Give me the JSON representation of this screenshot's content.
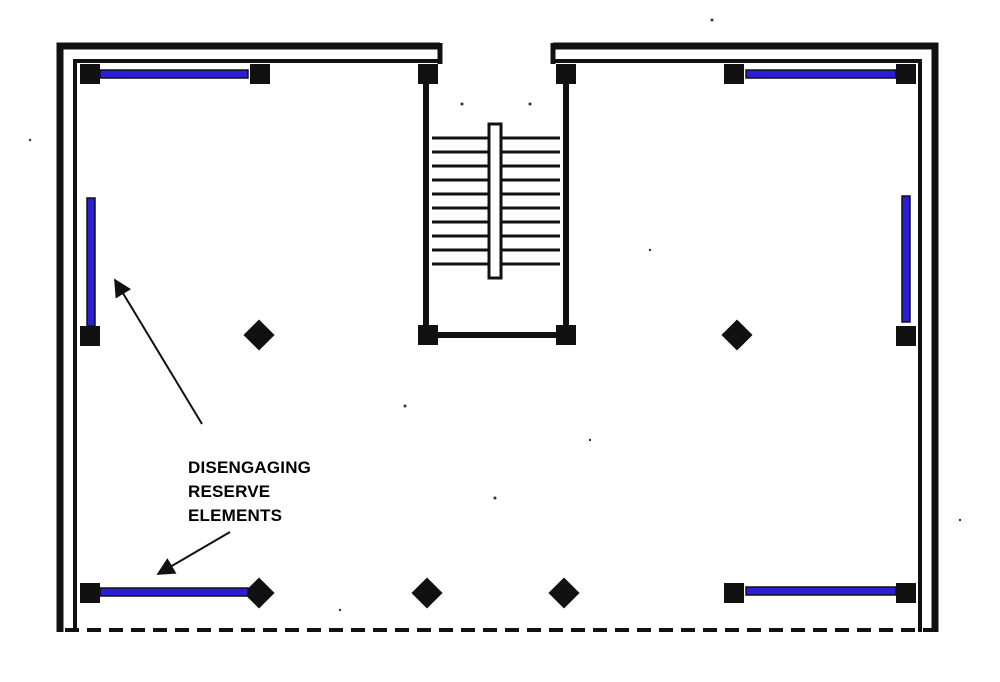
{
  "annotation": {
    "lines": [
      "DISENGAGING",
      "RESERVE",
      "ELEMENTS"
    ]
  },
  "colors": {
    "ink": "#111111",
    "reserve_element": "#2a1fd6",
    "background": "#ffffff"
  }
}
